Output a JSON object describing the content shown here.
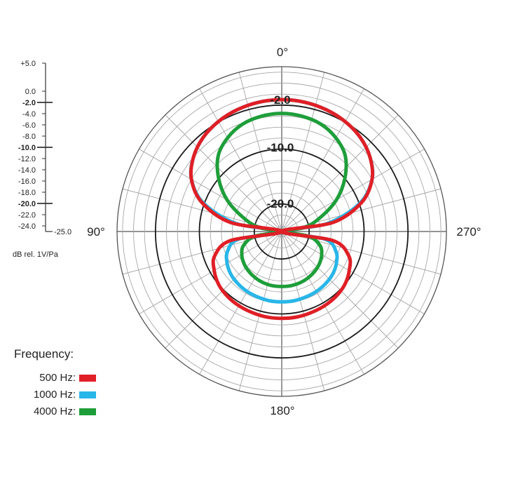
{
  "chart_data": {
    "type": "polar",
    "angle_labels": [
      "0°",
      "90°",
      "180°",
      "270°"
    ],
    "angle_direction": "counterclockwise",
    "radial_range_db": [
      -25.0,
      5.0
    ],
    "radial_ticks": [
      "+5.0",
      "0.0",
      "-2.0",
      "-4.0",
      "-6.0",
      "-8.0",
      "-10.0",
      "-12.0",
      "-14.0",
      "-16.0",
      "-18.0",
      "-20.0",
      "-22.0",
      "-24.0",
      "-25.0"
    ],
    "emphasized_ticks": [
      "-2.0",
      "-10.0",
      "-20.0"
    ],
    "ring_labels": [
      "-2.0",
      "-10.0",
      "-20.0"
    ],
    "unit_label": "dB rel. 1V/Pa",
    "legend": {
      "title": "Frequency:",
      "placement": "bottom-left",
      "entries": [
        {
          "label": "500 Hz:",
          "color": "#e01f26"
        },
        {
          "label": "1000 Hz:",
          "color": "#29b6e8"
        },
        {
          "label": "4000 Hz:",
          "color": "#1e9e3a"
        }
      ]
    },
    "series": [
      {
        "name": "500 Hz",
        "color": "#e01f26",
        "angle_deg": [
          0,
          10,
          20,
          30,
          40,
          50,
          60,
          70,
          80,
          90,
          100,
          110,
          120,
          130,
          140,
          150,
          160,
          170,
          180,
          190,
          200,
          210,
          220,
          230,
          240,
          250,
          260,
          270,
          280,
          290,
          300,
          310,
          320,
          330,
          340,
          350
        ],
        "level_db": [
          -1.0,
          -1.1,
          -1.4,
          -1.9,
          -2.7,
          -4.0,
          -6.0,
          -9.5,
          -15.5,
          -25.0,
          -15.5,
          -12.0,
          -10.8,
          -10.0,
          -9.6,
          -9.4,
          -9.3,
          -9.2,
          -9.2,
          -9.2,
          -9.3,
          -9.4,
          -9.6,
          -10.0,
          -10.8,
          -12.0,
          -15.5,
          -25.0,
          -15.5,
          -9.5,
          -6.0,
          -4.0,
          -2.7,
          -1.9,
          -1.4,
          -1.1
        ]
      },
      {
        "name": "1000 Hz",
        "color": "#29b6e8",
        "angle_deg": [
          0,
          10,
          20,
          30,
          40,
          50,
          60,
          70,
          80,
          90,
          100,
          110,
          120,
          130,
          140,
          150,
          160,
          170,
          180,
          190,
          200,
          210,
          220,
          230,
          240,
          250,
          260,
          270,
          280,
          290,
          300,
          310,
          320,
          330,
          340,
          350
        ],
        "level_db": [
          -1.0,
          -1.1,
          -1.4,
          -1.9,
          -2.7,
          -4.0,
          -6.0,
          -9.8,
          -16.5,
          -25.0,
          -17.0,
          -14.5,
          -13.5,
          -12.9,
          -12.6,
          -12.4,
          -12.3,
          -12.2,
          -12.2,
          -12.2,
          -12.3,
          -12.4,
          -12.6,
          -12.9,
          -13.5,
          -14.5,
          -17.0,
          -25.0,
          -16.5,
          -9.8,
          -6.0,
          -4.0,
          -2.7,
          -1.9,
          -1.4,
          -1.1
        ]
      },
      {
        "name": "4000 Hz",
        "color": "#1e9e3a",
        "angle_deg": [
          0,
          10,
          20,
          30,
          40,
          50,
          60,
          70,
          80,
          90,
          100,
          110,
          120,
          130,
          140,
          150,
          160,
          170,
          180,
          190,
          200,
          210,
          220,
          230,
          240,
          250,
          260,
          270,
          280,
          290,
          300,
          310,
          320,
          330,
          340,
          350
        ],
        "level_db": [
          -3.5,
          -3.7,
          -4.2,
          -5.3,
          -7.0,
          -10.0,
          -13.5,
          -17.5,
          -20.8,
          -25.0,
          -20.0,
          -17.6,
          -16.6,
          -16.0,
          -15.6,
          -15.3,
          -15.1,
          -15.0,
          -15.0,
          -15.0,
          -15.1,
          -15.3,
          -15.6,
          -16.0,
          -16.6,
          -17.6,
          -20.0,
          -25.0,
          -20.8,
          -17.5,
          -13.5,
          -10.0,
          -7.0,
          -5.3,
          -4.2,
          -3.7
        ]
      }
    ]
  }
}
